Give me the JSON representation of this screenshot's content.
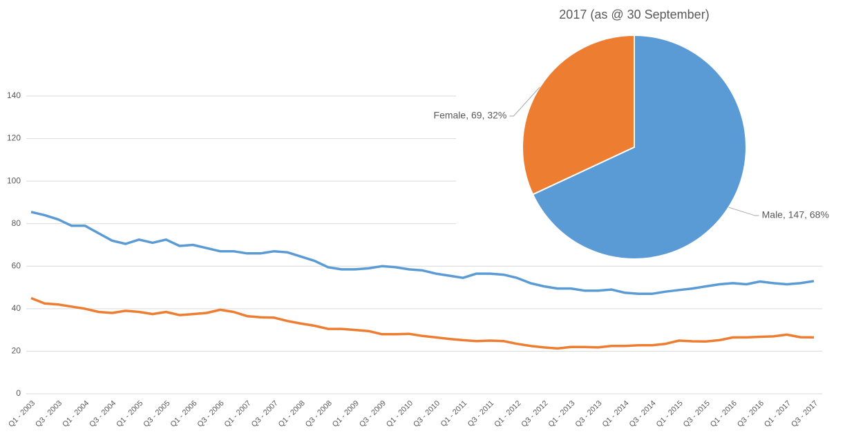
{
  "chart_data": [
    {
      "type": "line",
      "categories": [
        "Q1 - 2003",
        null,
        "Q3 - 2003",
        null,
        "Q1 - 2004",
        null,
        "Q3 - 2004",
        null,
        "Q1 - 2005",
        null,
        "Q3 - 2005",
        null,
        "Q1 - 2006",
        null,
        "Q3 - 2006",
        null,
        "Q1 - 2007",
        null,
        "Q3 - 2007",
        null,
        "Q1 - 2008",
        null,
        "Q3 - 2008",
        null,
        "Q1 - 2009",
        null,
        "Q3 - 2009",
        null,
        "Q1 - 2010",
        null,
        "Q3 - 2010",
        null,
        "Q1 - 2011",
        null,
        "Q3 - 2011",
        null,
        "Q1 - 2012",
        null,
        "Q3 - 2012",
        null,
        "Q1 - 2013",
        null,
        "Q3 - 2013",
        null,
        "Q1 - 2014",
        null,
        "Q3 - 2014",
        null,
        "Q1 - 2015",
        null,
        "Q3 - 2015",
        null,
        "Q1 - 2016",
        null,
        "Q3 - 2016",
        null,
        "Q1 - 2017",
        null,
        "Q3 - 2017"
      ],
      "series": [
        {
          "color": "#5b9bd5",
          "values": [
            85.5,
            84,
            82,
            79,
            79,
            75.5,
            72,
            70.5,
            72.5,
            71,
            72.5,
            69.5,
            70,
            68.5,
            67,
            67,
            66,
            66,
            67,
            66.5,
            64.5,
            62.5,
            59.5,
            58.5,
            58.5,
            59,
            60,
            59.5,
            58.5,
            58,
            56.5,
            55.5,
            54.5,
            56.5,
            56.5,
            56,
            54.5,
            52,
            50.5,
            49.5,
            49.5,
            48.5,
            48.5,
            49,
            47.5,
            47,
            47,
            48,
            48.8,
            49.5,
            50.5,
            51.5,
            52,
            51.5,
            52.8,
            52,
            51.5,
            52,
            53
          ]
        },
        {
          "color": "#ed7d31",
          "values": [
            45,
            42.5,
            42,
            41,
            40,
            38.5,
            38,
            39,
            38.5,
            37.5,
            38.5,
            37,
            37.5,
            38,
            39.5,
            38.5,
            36.5,
            36,
            35.8,
            34.2,
            33,
            32,
            30.5,
            30.5,
            30,
            29.5,
            28,
            28,
            28.2,
            27.2,
            26.5,
            25.8,
            25.2,
            24.8,
            25,
            24.8,
            23.5,
            22.5,
            21.8,
            21.3,
            22,
            22,
            21.8,
            22.5,
            22.5,
            22.8,
            22.8,
            23.5,
            25,
            24.7,
            24.6,
            25.2,
            26.5,
            26.5,
            26.8,
            27,
            27.8,
            26.6,
            26.5
          ]
        }
      ],
      "ylim": [
        0,
        140
      ],
      "yticks": [
        0,
        20,
        40,
        60,
        80,
        100,
        120,
        140
      ],
      "grid": true
    },
    {
      "type": "pie",
      "title": "2017 (as @ 30 September)",
      "categories": [
        "Male",
        "Female"
      ],
      "values": [
        147,
        69
      ],
      "value_labels": [
        "Male, 147, 68%",
        "Female, 69, 32%"
      ],
      "colors": [
        "#5b9bd5",
        "#ed7d31"
      ]
    }
  ]
}
